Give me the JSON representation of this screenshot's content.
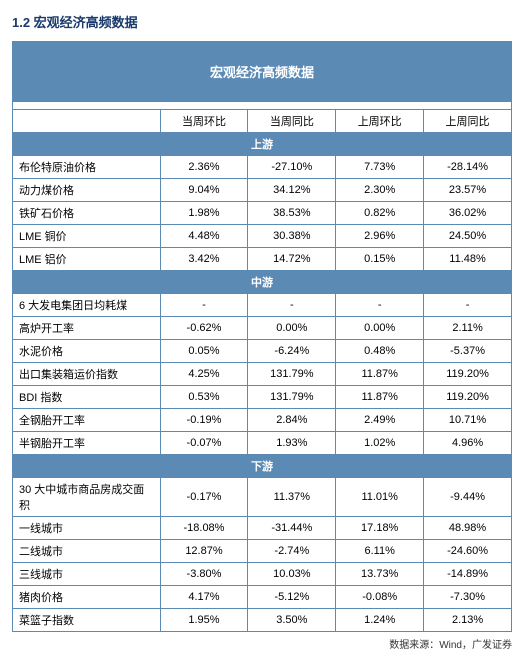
{
  "pageTitle": "1.2 宏观经济高频数据",
  "tableTitle": "宏观经济高频数据",
  "columns": [
    "",
    "当周环比",
    "当周同比",
    "上周环比",
    "上周同比"
  ],
  "sections": [
    {
      "name": "上游",
      "rows": [
        {
          "label": "布伦特原油价格",
          "v": [
            "2.36%",
            "-27.10%",
            "7.73%",
            "-28.14%"
          ]
        },
        {
          "label": "动力煤价格",
          "v": [
            "9.04%",
            "34.12%",
            "2.30%",
            "23.57%"
          ]
        },
        {
          "label": "铁矿石价格",
          "v": [
            "1.98%",
            "38.53%",
            "0.82%",
            "36.02%"
          ]
        },
        {
          "label": "LME 铜价",
          "v": [
            "4.48%",
            "30.38%",
            "2.96%",
            "24.50%"
          ]
        },
        {
          "label": "LME 铝价",
          "v": [
            "3.42%",
            "14.72%",
            "0.15%",
            "11.48%"
          ]
        }
      ]
    },
    {
      "name": "中游",
      "rows": [
        {
          "label": "6 大发电集团日均耗煤",
          "v": [
            "-",
            "-",
            "-",
            "-"
          ]
        },
        {
          "label": "高炉开工率",
          "v": [
            "-0.62%",
            "0.00%",
            "0.00%",
            "2.11%"
          ]
        },
        {
          "label": "水泥价格",
          "v": [
            "0.05%",
            "-6.24%",
            "0.48%",
            "-5.37%"
          ]
        },
        {
          "label": "出口集装箱运价指数",
          "v": [
            "4.25%",
            "131.79%",
            "11.87%",
            "119.20%"
          ]
        },
        {
          "label": "BDI 指数",
          "v": [
            "0.53%",
            "131.79%",
            "11.87%",
            "119.20%"
          ]
        },
        {
          "label": "全钢胎开工率",
          "v": [
            "-0.19%",
            "2.84%",
            "2.49%",
            "10.71%"
          ]
        },
        {
          "label": "半钢胎开工率",
          "v": [
            "-0.07%",
            "1.93%",
            "1.02%",
            "4.96%"
          ]
        }
      ]
    },
    {
      "name": "下游",
      "rows": [
        {
          "label": "30 大中城市商品房成交面积",
          "v": [
            "-0.17%",
            "11.37%",
            "11.01%",
            "-9.44%"
          ]
        },
        {
          "label": "一线城市",
          "v": [
            "-18.08%",
            "-31.44%",
            "17.18%",
            "48.98%"
          ]
        },
        {
          "label": "二线城市",
          "v": [
            "12.87%",
            "-2.74%",
            "6.11%",
            "-24.60%"
          ]
        },
        {
          "label": "三线城市",
          "v": [
            "-3.80%",
            "10.03%",
            "13.73%",
            "-14.89%"
          ]
        },
        {
          "label": "猪肉价格",
          "v": [
            "4.17%",
            "-5.12%",
            "-0.08%",
            "-7.30%"
          ]
        },
        {
          "label": "菜篮子指数",
          "v": [
            "1.95%",
            "3.50%",
            "1.24%",
            "2.13%"
          ]
        }
      ]
    }
  ],
  "source": "数据来源：Wind，广发证券"
}
